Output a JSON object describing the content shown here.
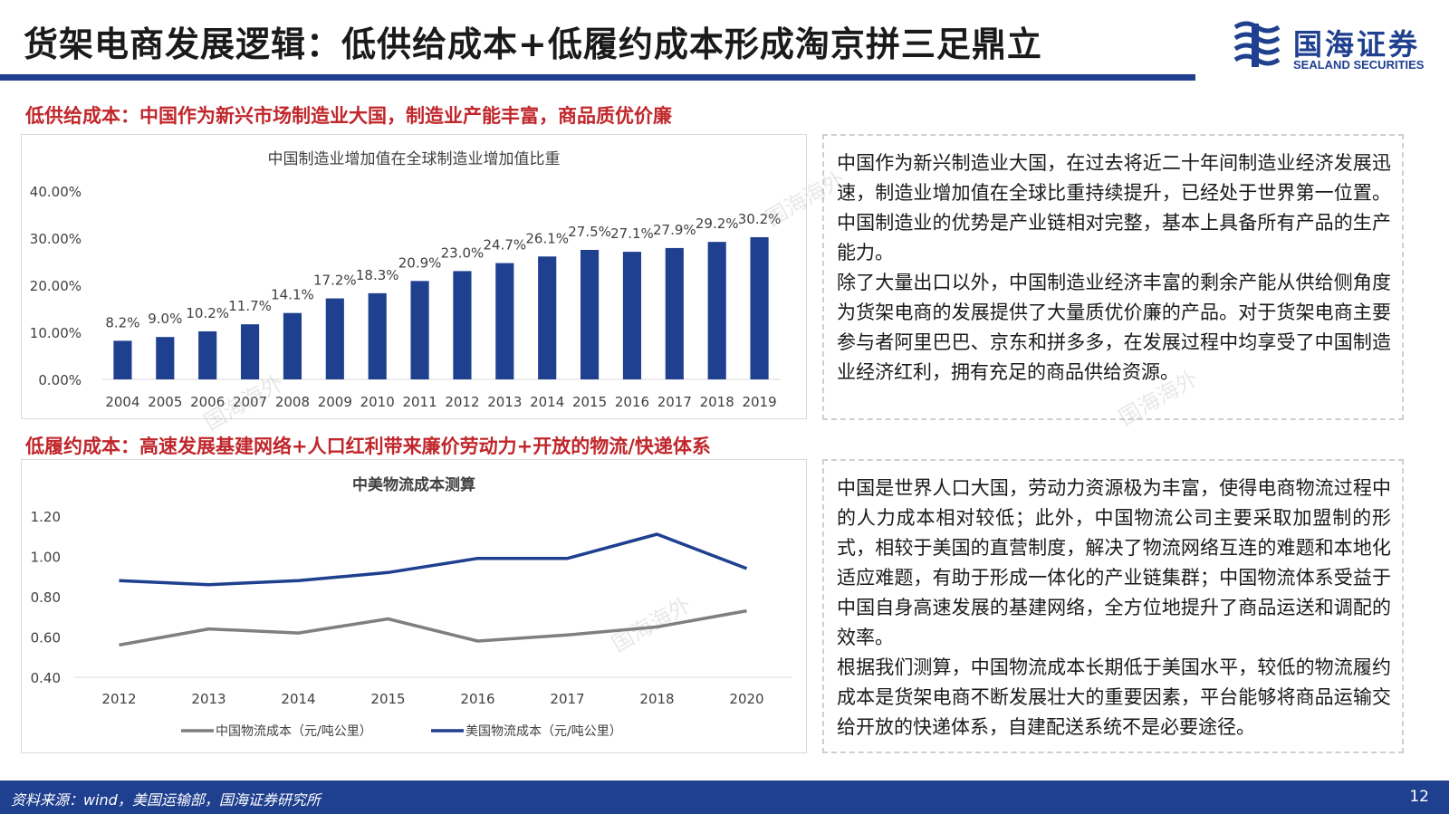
{
  "page": {
    "title": "货架电商发展逻辑：低供给成本+低履约成本形成淘京拼三足鼎立",
    "page_number": "12",
    "source": "资料来源：wind，美国运输部，国海证券研究所"
  },
  "logo": {
    "name_cn": "国海证券",
    "name_en": "SEALAND SECURITIES",
    "brand_color": "#1f3f8f"
  },
  "sections": [
    {
      "heading": "低供给成本：中国作为新兴市场制造业大国，制造业产能丰富，商品质优价廉",
      "paragraphs": [
        "中国作为新兴制造业大国，在过去将近二十年间制造业经济发展迅速，制造业增加值在全球比重持续提升，已经处于世界第一位置。中国制造业的优势是产业链相对完整，基本上具备所有产品的生产能力。",
        "除了大量出口以外，中国制造业经济丰富的剩余产能从供给侧角度为货架电商的发展提供了大量质优价廉的产品。对于货架电商主要参与者阿里巴巴、京东和拼多多，在发展过程中均享受了中国制造业经济红利，拥有充足的商品供给资源。"
      ]
    },
    {
      "heading": "低履约成本：高速发展基建网络+人口红利带来廉价劳动力+开放的物流/快递体系",
      "paragraphs": [
        "中国是世界人口大国，劳动力资源极为丰富，使得电商物流过程中的人力成本相对较低；此外，中国物流公司主要采取加盟制的形式，相较于美国的直营制度，解决了物流网络互连的难题和本地化适应难题，有助于形成一体化的产业链集群；中国物流体系受益于中国自身高速发展的基建网络，全方位地提升了商品运送和调配的效率。",
        "根据我们测算，中国物流成本长期低于美国水平，较低的物流履约成本是货架电商不断发展壮大的重要因素，平台能够将商品运输交给开放的快递体系，自建配送系统不是必要途径。"
      ]
    }
  ],
  "watermark": "国海海外",
  "chart_data": [
    {
      "type": "bar",
      "title": "中国制造业增加值在全球制造业增加值比重",
      "categories": [
        "2004",
        "2005",
        "2006",
        "2007",
        "2008",
        "2009",
        "2010",
        "2011",
        "2012",
        "2013",
        "2014",
        "2015",
        "2016",
        "2017",
        "2018",
        "2019"
      ],
      "values": [
        8.2,
        9.0,
        10.2,
        11.7,
        14.1,
        17.2,
        18.3,
        20.9,
        23.0,
        24.7,
        26.1,
        27.5,
        27.1,
        27.9,
        29.2,
        30.2
      ],
      "data_labels": [
        "8.2%",
        "9.0%",
        "10.2%",
        "11.7%",
        "14.1%",
        "17.2%",
        "18.3%",
        "20.9%",
        "23.0%",
        "24.7%",
        "26.1%",
        "27.5%",
        "27.1%",
        "27.9%",
        "29.2%",
        "30.2%"
      ],
      "yticks": [
        "0.00%",
        "10.00%",
        "20.00%",
        "30.00%",
        "40.00%"
      ],
      "ylim": [
        0,
        40
      ],
      "grid": false,
      "color": "#1f3f8f"
    },
    {
      "type": "line",
      "title": "中美物流成本测算",
      "x": [
        "2012",
        "2013",
        "2014",
        "2015",
        "2016",
        "2017",
        "2018",
        "2020"
      ],
      "yticks": [
        "0.40",
        "0.60",
        "0.80",
        "1.00",
        "1.20"
      ],
      "ylim": [
        0.4,
        1.2
      ],
      "grid": false,
      "legend_position": "bottom",
      "series": [
        {
          "name": "中国物流成本（元/吨公里）",
          "color": "#7f7f7f",
          "values": [
            0.56,
            0.64,
            0.62,
            0.69,
            0.58,
            0.61,
            0.65,
            0.73
          ]
        },
        {
          "name": "美国物流成本（元/吨公里）",
          "color": "#1f3f8f",
          "values": [
            0.88,
            0.86,
            0.88,
            0.92,
            0.99,
            0.99,
            1.11,
            0.94
          ]
        }
      ]
    }
  ]
}
